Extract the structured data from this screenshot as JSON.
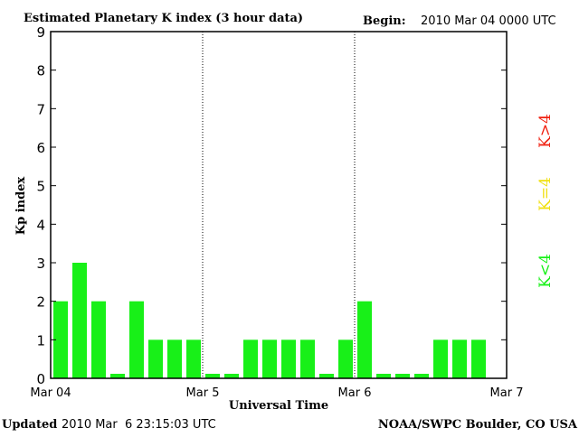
{
  "chart_data": {
    "type": "bar",
    "title": "Estimated Planetary K index (3 hour data)",
    "begin_label": "Begin:",
    "begin_value": "2010 Mar 04 0000 UTC",
    "xlabel": "Universal Time",
    "ylabel": "Kp index",
    "ylim": [
      0,
      9
    ],
    "yticks": [
      "0",
      "1",
      "2",
      "3",
      "4",
      "5",
      "6",
      "7",
      "8",
      "9"
    ],
    "xticks": [
      "Mar 04",
      "Mar 5",
      "Mar 6",
      "Mar 7"
    ],
    "slots": 24,
    "values": [
      2,
      3,
      2,
      0,
      2,
      1,
      1,
      1,
      0,
      0,
      1,
      1,
      1,
      1,
      0,
      1,
      2,
      0,
      0,
      0,
      1,
      1,
      1,
      null
    ],
    "bar_color": "#18f018",
    "legend": [
      {
        "label": "K<4",
        "color": "#18f018"
      },
      {
        "label": "K=4",
        "color": "#f0e010"
      },
      {
        "label": "K>4",
        "color": "#f02010"
      }
    ],
    "updated_label": "Updated",
    "updated_value": "2010 Mar  6 23:15:03 UTC",
    "source": "NOAA/SWPC Boulder, CO USA"
  }
}
